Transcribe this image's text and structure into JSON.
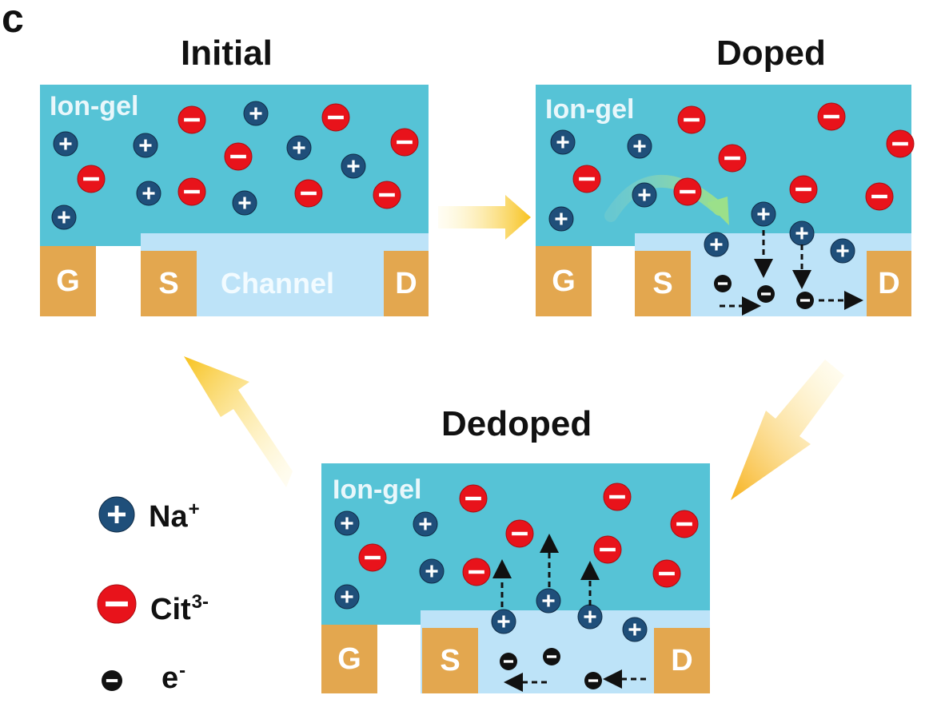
{
  "panel_letter": "c",
  "initial": {
    "title": "Initial",
    "gel_label": "Ion-gel",
    "gate_label": "G",
    "source_label": "S",
    "drain_label": "D",
    "channel_label": "Channel"
  },
  "doped": {
    "title": "Doped",
    "gel_label": "Ion-gel",
    "gate_label": "G",
    "source_label": "S",
    "drain_label": "D"
  },
  "dedoped": {
    "title": "Dedoped",
    "gel_label": "Ion-gel",
    "gate_label": "G",
    "source_label": "S",
    "drain_label": "D"
  },
  "legend": {
    "cation_label": "Na",
    "cation_charge": "+",
    "anion_label": "Cit",
    "anion_charge": "3-",
    "electron_label": "e",
    "electron_charge": "-"
  },
  "colors": {
    "ion_gel": "#56c3d6",
    "channel": "#bde3f8",
    "electrode": "#e3a74f",
    "cation": "#1f4f7a",
    "anion": "#e8131b",
    "electron": "#111111",
    "cycle_arrow": "#f7c21e"
  }
}
